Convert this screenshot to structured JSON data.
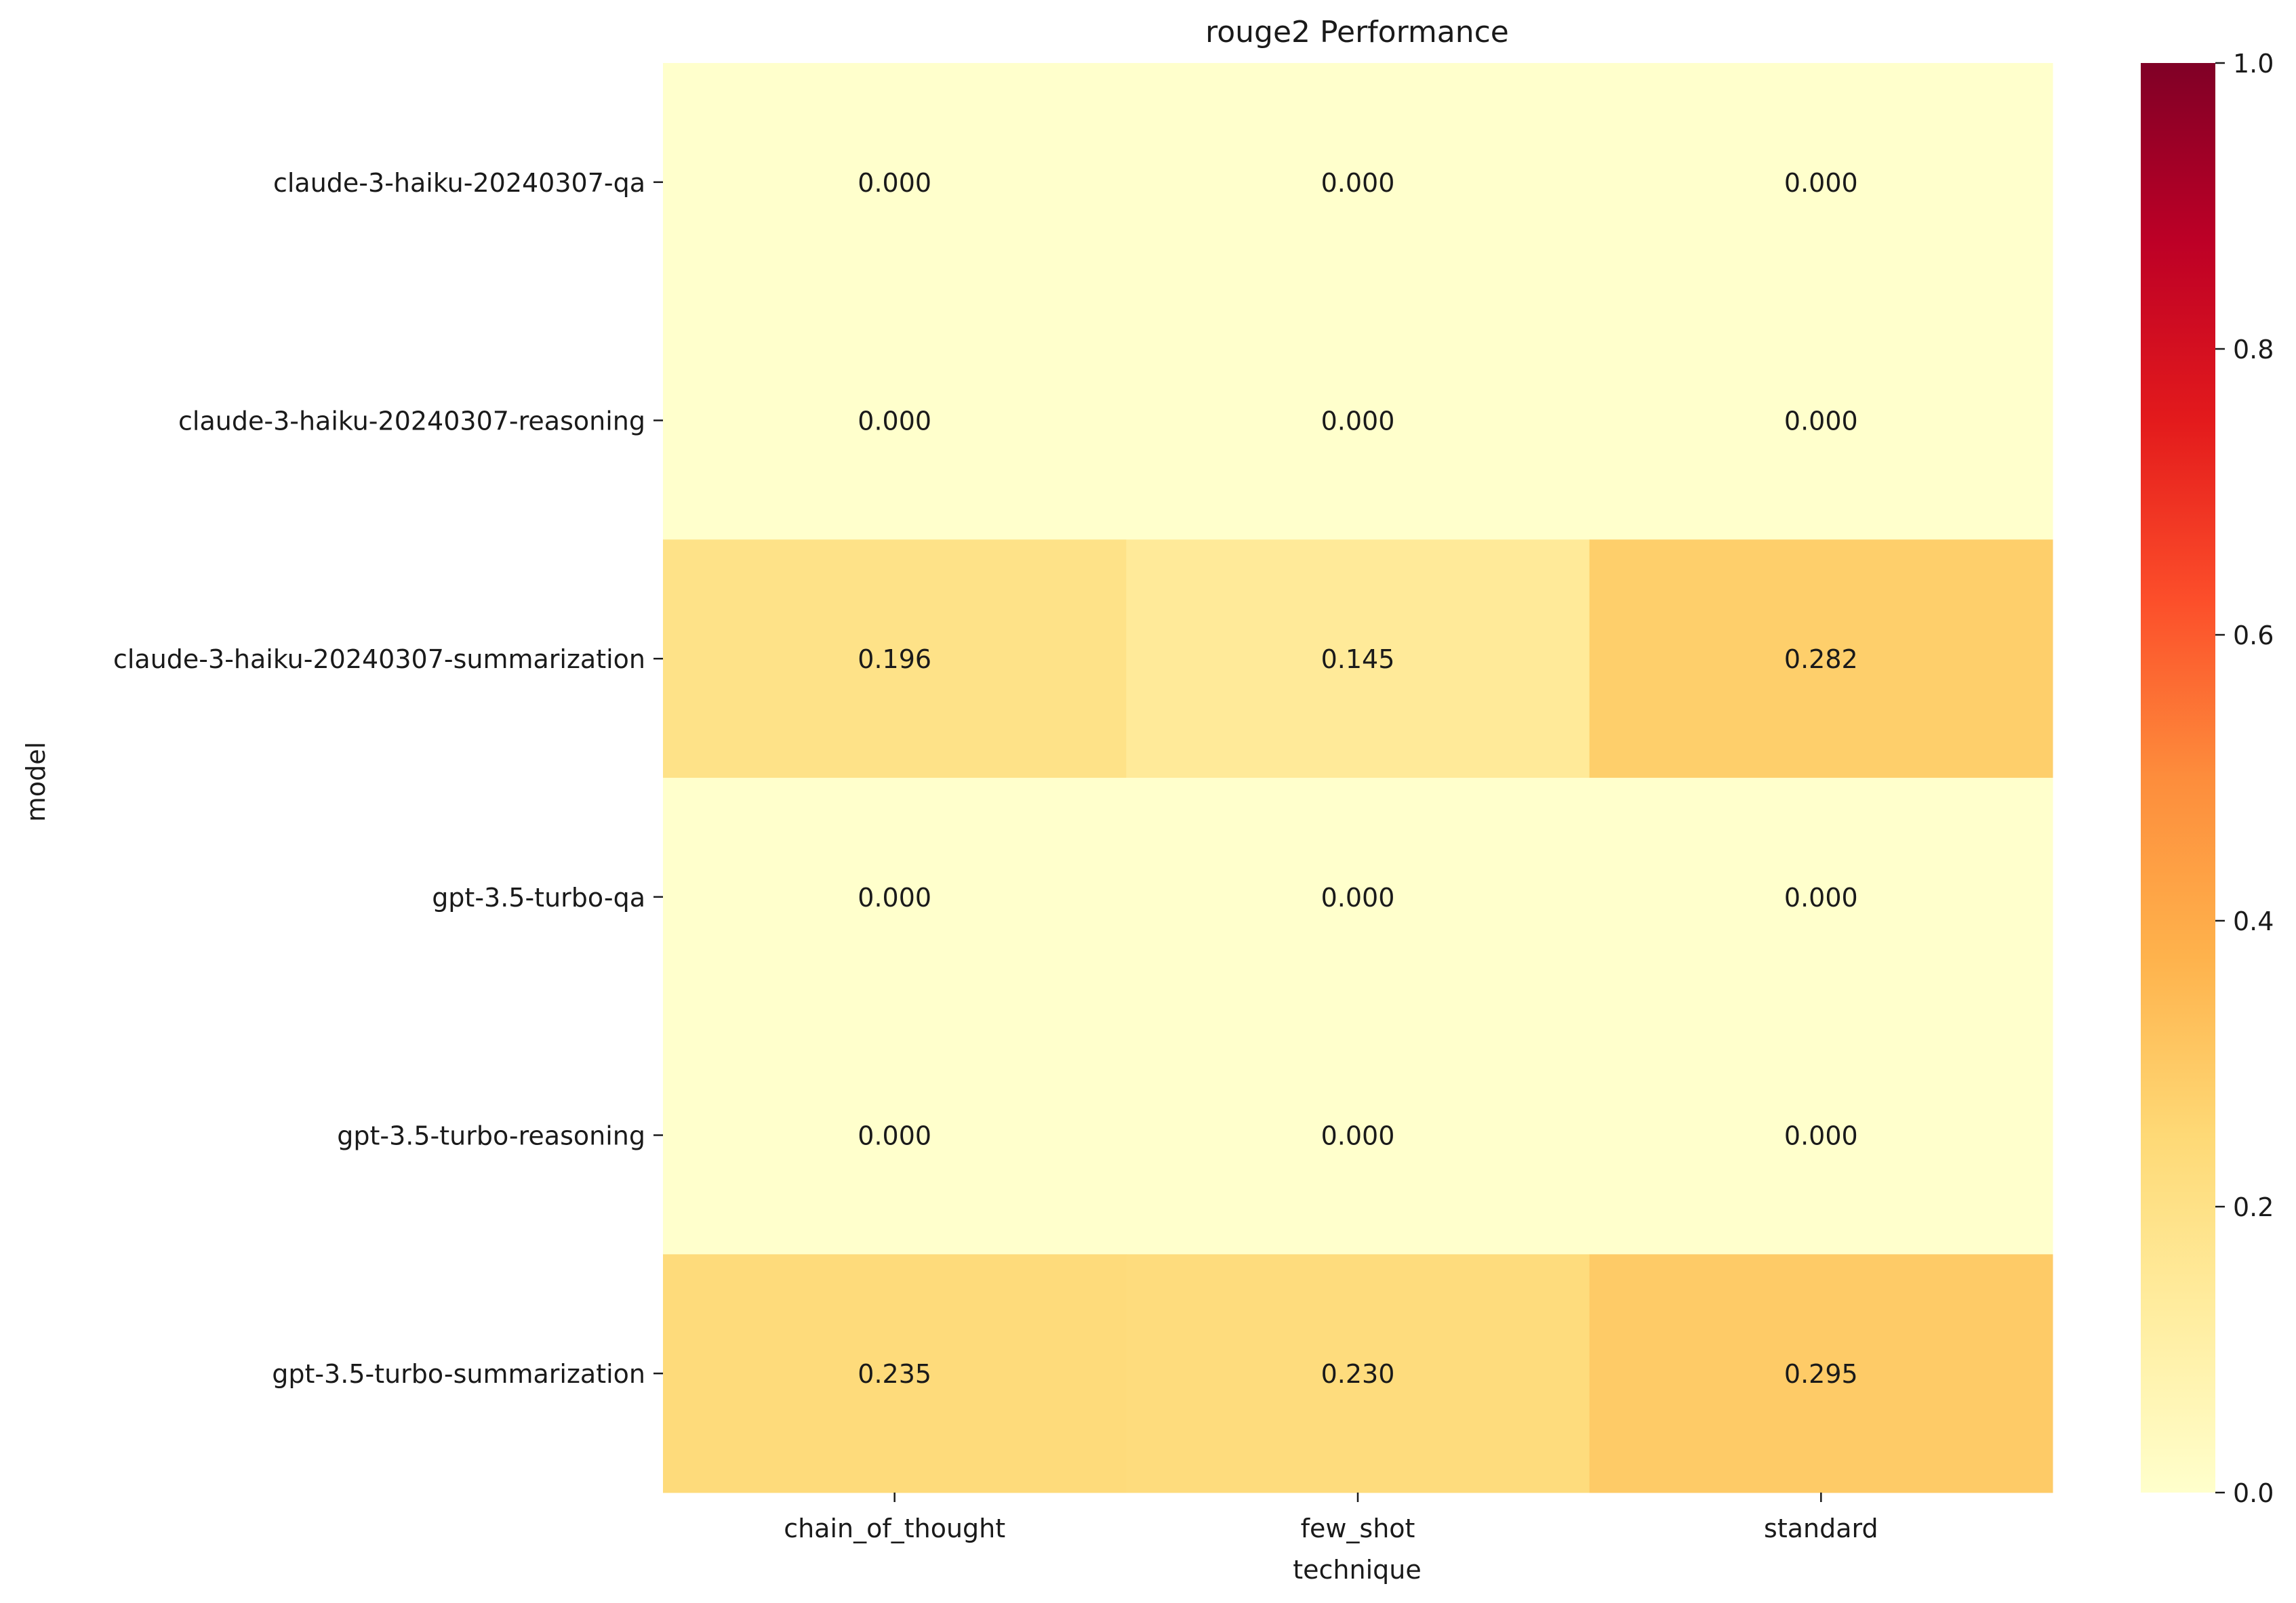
{
  "chart_data": {
    "type": "heatmap",
    "title": "rouge2 Performance",
    "xlabel": "technique",
    "ylabel": "model",
    "x_categories": [
      "chain_of_thought",
      "few_shot",
      "standard"
    ],
    "y_categories": [
      "claude-3-haiku-20240307-qa",
      "claude-3-haiku-20240307-reasoning",
      "claude-3-haiku-20240307-summarization",
      "gpt-3.5-turbo-qa",
      "gpt-3.5-turbo-reasoning",
      "gpt-3.5-turbo-summarization"
    ],
    "values": [
      [
        0.0,
        0.0,
        0.0
      ],
      [
        0.0,
        0.0,
        0.0
      ],
      [
        0.196,
        0.145,
        0.282
      ],
      [
        0.0,
        0.0,
        0.0
      ],
      [
        0.0,
        0.0,
        0.0
      ],
      [
        0.235,
        0.23,
        0.295
      ]
    ],
    "value_format": "0.000",
    "colormap": "YlOrRd",
    "vmin": 0.0,
    "vmax": 1.0,
    "colorbar_ticks": [
      "0.0",
      "0.2",
      "0.4",
      "0.6",
      "0.8",
      "1.0"
    ],
    "grid": false,
    "legend": "colorbar right"
  }
}
